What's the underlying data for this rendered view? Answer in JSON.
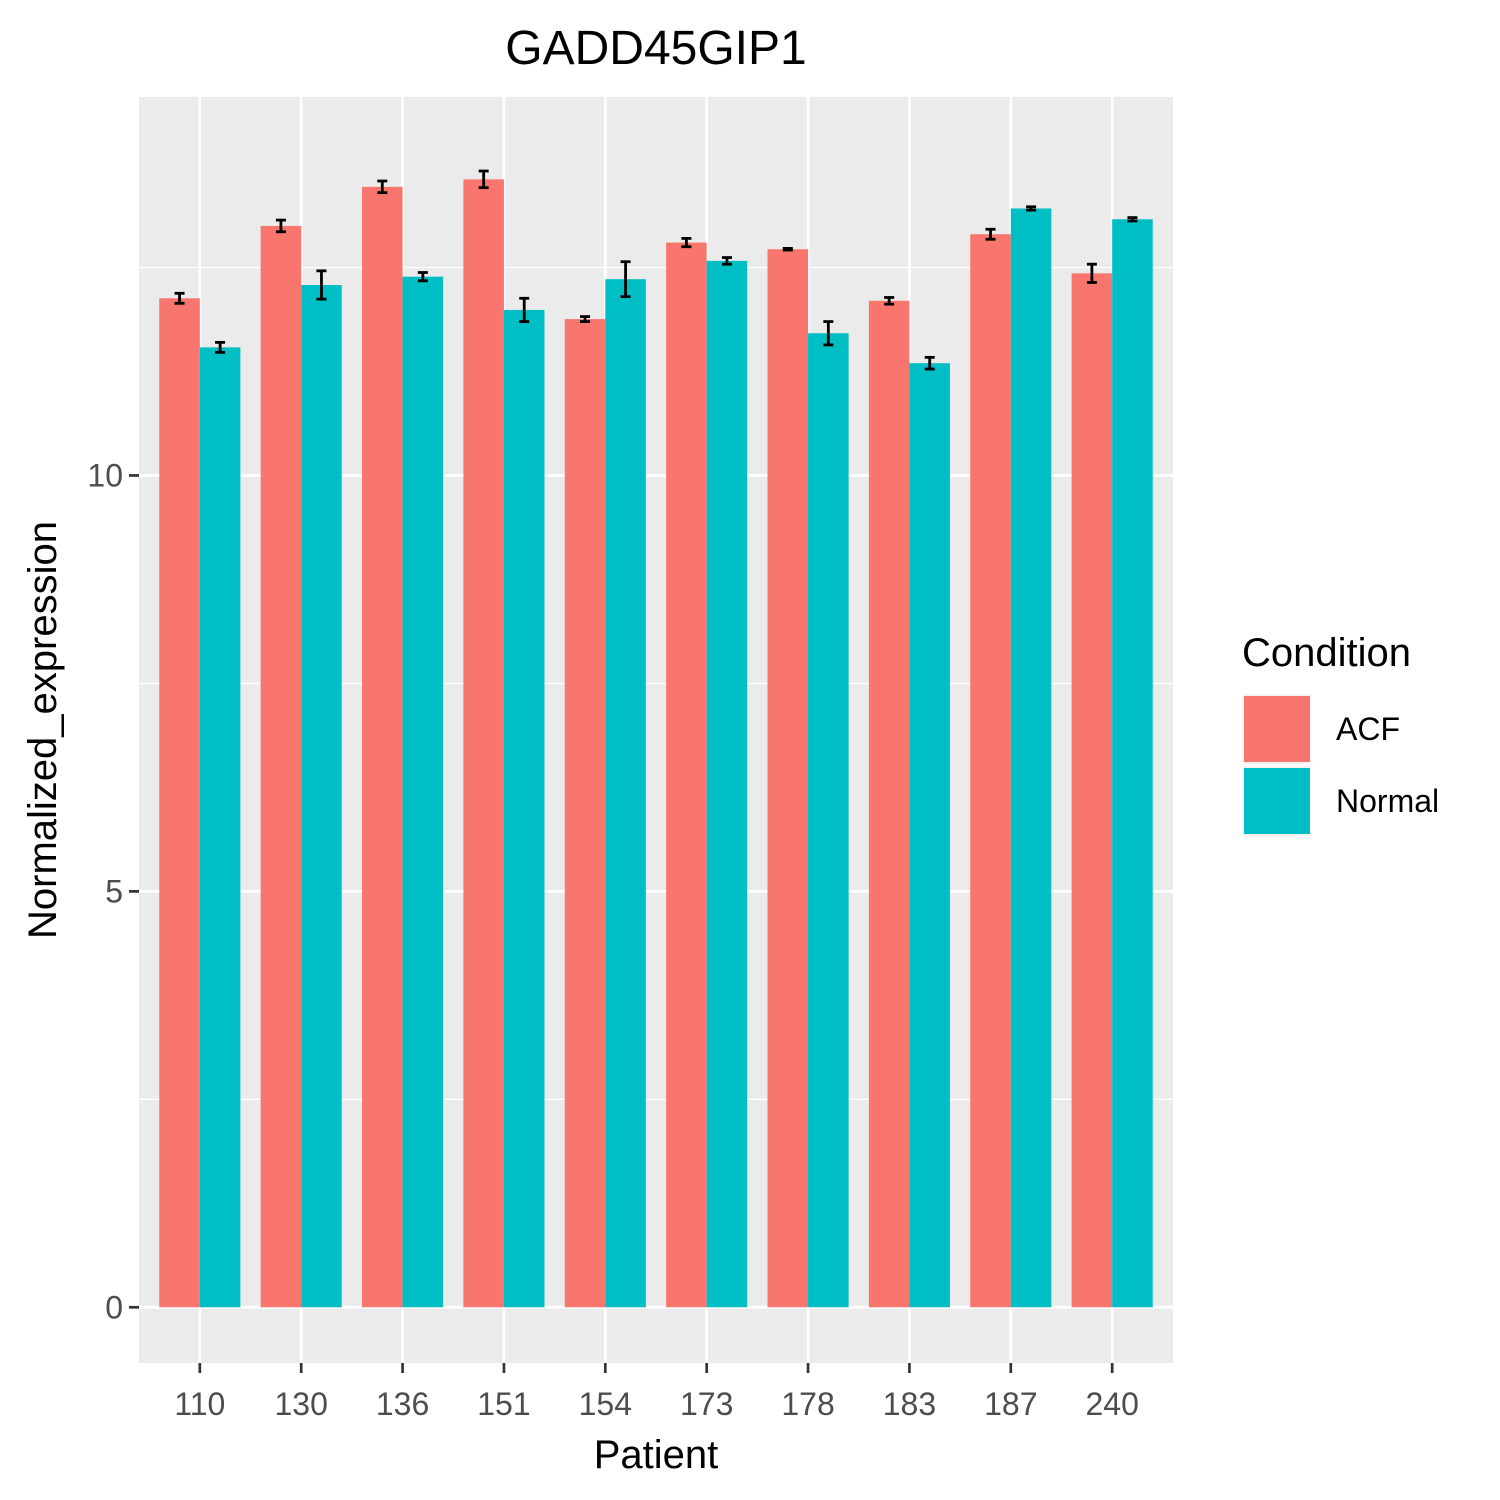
{
  "chart_data": {
    "type": "bar",
    "title": "GADD45GIP1",
    "xlabel": "Patient",
    "ylabel": "Normalized_expression",
    "categories": [
      "110",
      "130",
      "136",
      "151",
      "154",
      "173",
      "178",
      "183",
      "187",
      "240"
    ],
    "series": [
      {
        "name": "ACF",
        "color": "#F8766D",
        "values": [
          12.13,
          13.0,
          13.47,
          13.56,
          11.88,
          12.8,
          12.72,
          12.1,
          12.9,
          12.43
        ],
        "errors": [
          0.06,
          0.07,
          0.07,
          0.1,
          0.03,
          0.05,
          0.01,
          0.04,
          0.06,
          0.11
        ]
      },
      {
        "name": "Normal",
        "color": "#00BFC4",
        "values": [
          11.54,
          12.29,
          12.39,
          11.99,
          12.36,
          12.58,
          11.71,
          11.35,
          13.21,
          13.08
        ],
        "errors": [
          0.06,
          0.17,
          0.05,
          0.14,
          0.21,
          0.04,
          0.14,
          0.07,
          0.02,
          0.02
        ]
      }
    ],
    "ylim": [
      -0.67,
      14.55
    ],
    "yticks": [
      0,
      5,
      10
    ],
    "grid": true,
    "legend": {
      "title": "Condition",
      "placement": "right"
    }
  }
}
